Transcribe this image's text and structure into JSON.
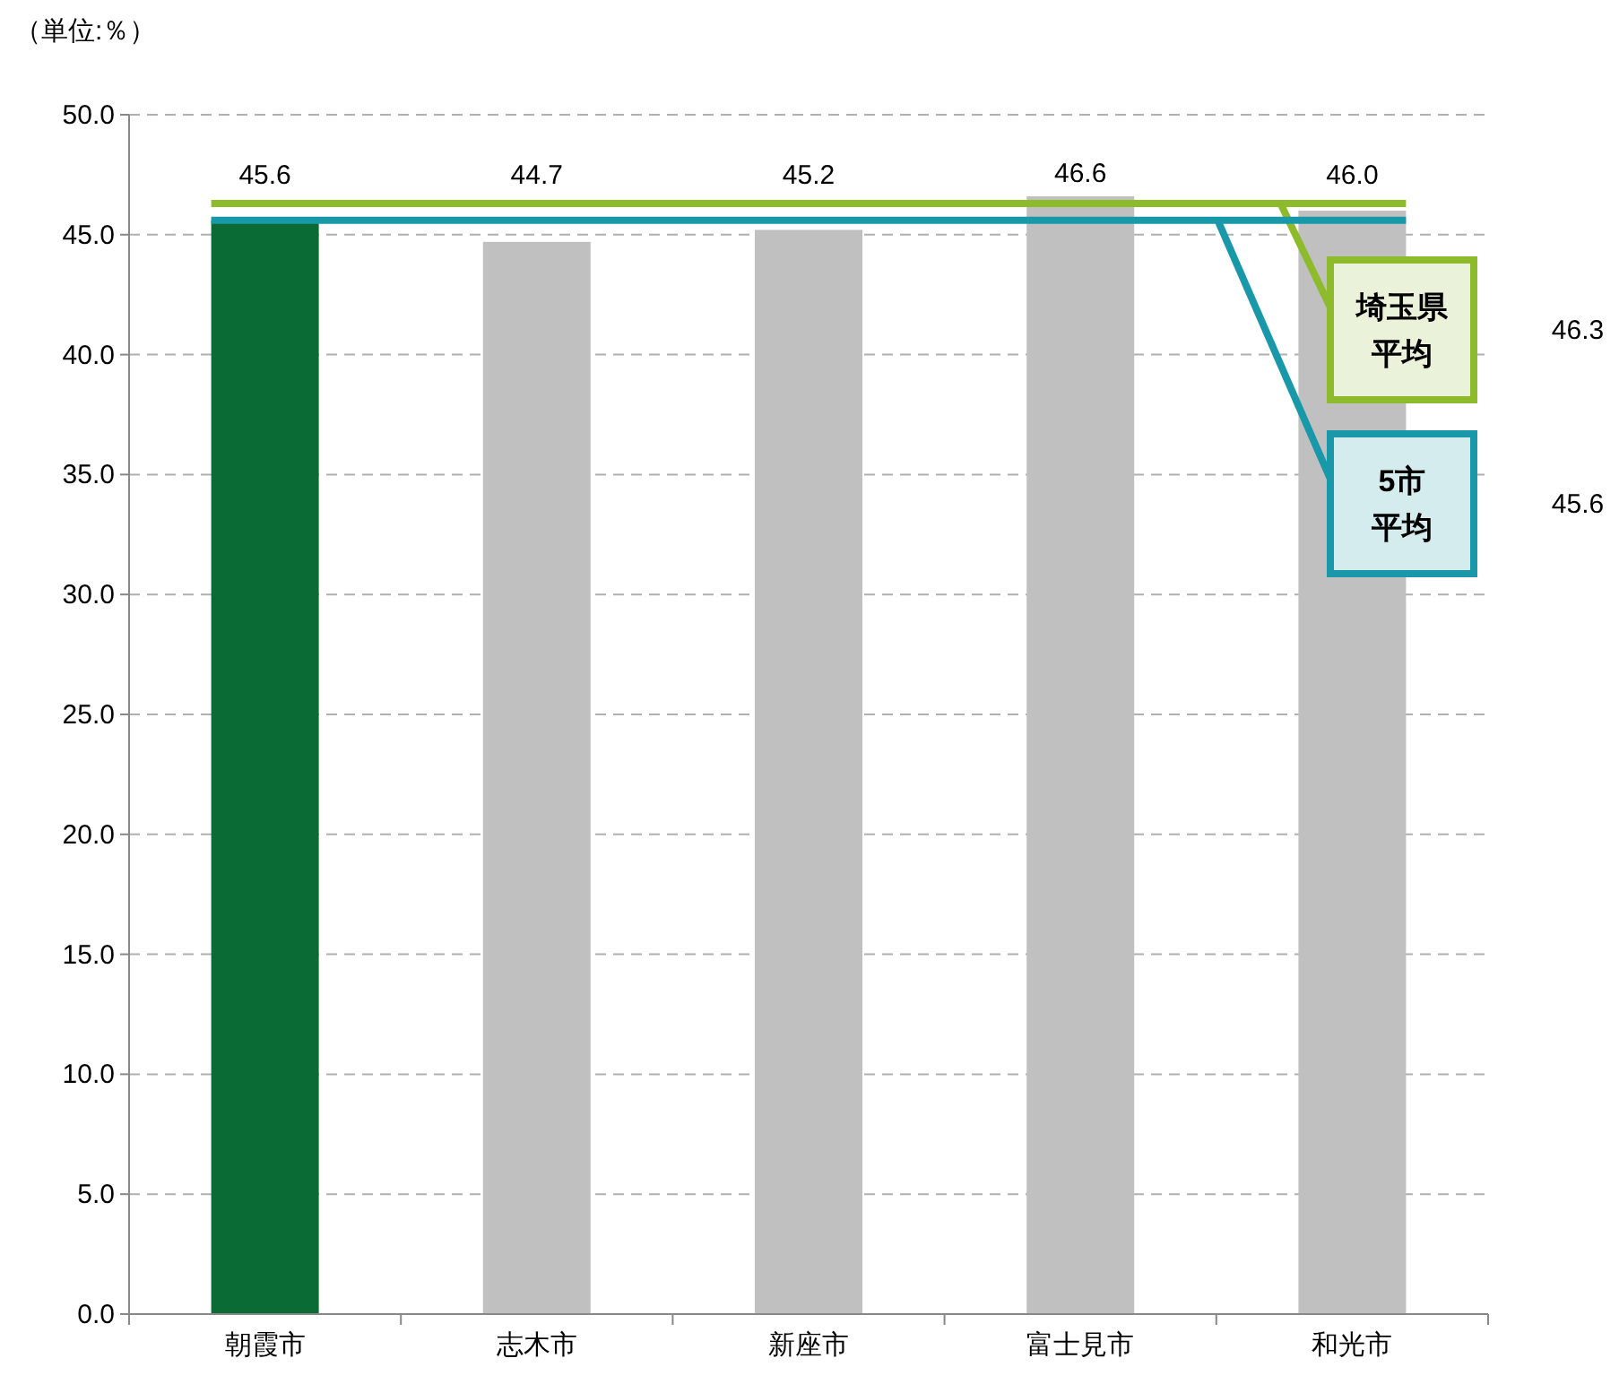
{
  "chart_data": {
    "type": "bar",
    "title": "（単位:％）",
    "categories": [
      "朝霞市",
      "志木市",
      "新座市",
      "富士見市",
      "和光市"
    ],
    "values": [
      45.6,
      44.7,
      45.2,
      46.6,
      46.0
    ],
    "value_labels": [
      "45.6",
      "44.7",
      "45.2",
      "46.6",
      "46.0"
    ],
    "colors": [
      "#0a6b35",
      "#c0c0c0",
      "#c0c0c0",
      "#c0c0c0",
      "#c0c0c0"
    ],
    "ylim": [
      0,
      50
    ],
    "yticks": [
      {
        "value": 0,
        "label": "0.0"
      },
      {
        "value": 5,
        "label": "5.0"
      },
      {
        "value": 10,
        "label": "10.0"
      },
      {
        "value": 15,
        "label": "15.0"
      },
      {
        "value": 20,
        "label": "20.0"
      },
      {
        "value": 25,
        "label": "25.0"
      },
      {
        "value": 30,
        "label": "30.0"
      },
      {
        "value": 35,
        "label": "35.0"
      },
      {
        "value": 40,
        "label": "40.0"
      },
      {
        "value": 45,
        "label": "45.0"
      },
      {
        "value": 50,
        "label": "50.0"
      }
    ],
    "grid": "y",
    "ref_lines": [
      {
        "axis": "y",
        "value": 46.3,
        "label": "埼玉県平均",
        "color": "#8dbb2c"
      },
      {
        "axis": "y",
        "value": 45.6,
        "label": "5市平均",
        "color": "#1898a8"
      }
    ],
    "annotations": [
      "46.3",
      "45.6"
    ]
  }
}
